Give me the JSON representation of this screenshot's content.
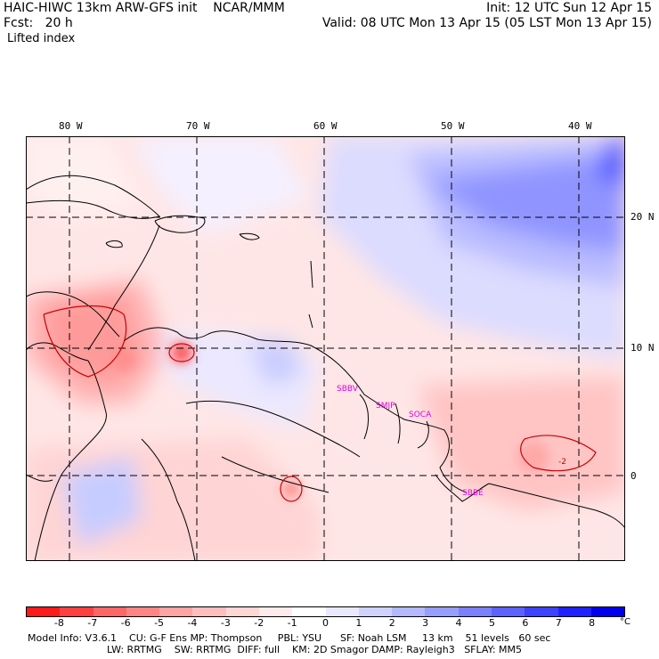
{
  "header": {
    "title": "HAIC-HIWC 13km ARW-GFS init    NCAR/MMM",
    "forecast": "Fcst:   20 h",
    "field": "Lifted index",
    "init": "Init: 12 UTC Sun 12 Apr 15",
    "valid": "Valid: 08 UTC Mon 13 Apr 15 (05 LST Mon 13 Apr 15)"
  },
  "map": {
    "lon_labels": [
      "80 W",
      "70 W",
      "60 W",
      "50 W",
      "40 W"
    ],
    "lat_labels": [
      "20 N",
      "10 N",
      "0"
    ],
    "stations": [
      "SBBV",
      "SMJP",
      "SOCA",
      "SBBE"
    ],
    "contour_label": "-2"
  },
  "colorbar": {
    "unit": "°C",
    "ticks": [
      "-8",
      "-7",
      "-6",
      "-5",
      "-4",
      "-3",
      "-2",
      "-1",
      "0",
      "1",
      "2",
      "3",
      "4",
      "5",
      "6",
      "7",
      "8"
    ],
    "colors": [
      "#ff1a1a",
      "#ff4040",
      "#ff6666",
      "#ff8585",
      "#ffa3a3",
      "#ffbebe",
      "#ffd6d6",
      "#ffebeb",
      "#ffffff",
      "#e8e8ff",
      "#cfd2ff",
      "#b3b8ff",
      "#979eff",
      "#7a80ff",
      "#5c62ff",
      "#3d42ff",
      "#1f22ff",
      "#0000ee"
    ]
  },
  "footer": {
    "line1": "Model Info: V3.6.1    CU: G-F Ens MP: Thompson     PBL: YSU      SF: Noah LSM     13 km    51 levels   60 sec",
    "line2": "LW: RRTMG    SW: RRTMG  DIFF: full    KM: 2D Smagor DAMP: Rayleigh3   SFLAY: MM5"
  }
}
